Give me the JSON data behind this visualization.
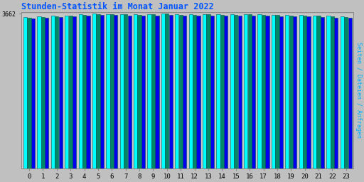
{
  "title": "Stunden-Statistik im Monat Januar 2022",
  "title_color": "#0055FF",
  "ylabel_right": "Seiten / Dateien / Anfragen",
  "ylabel_right_color": "#00AAFF",
  "ytick_label": "3662",
  "ytick_value": 3662,
  "background_color": "#C0C0C0",
  "plot_bg_color": "#C8C8C8",
  "bar_color_cyan": "#00FFFF",
  "bar_color_teal": "#008866",
  "bar_color_blue": "#0000EE",
  "bar_edgecolor": "#005555",
  "hours": [
    0,
    1,
    2,
    3,
    4,
    5,
    6,
    7,
    8,
    9,
    10,
    11,
    12,
    13,
    14,
    15,
    16,
    17,
    18,
    19,
    20,
    21,
    22,
    23
  ],
  "values_cyan": [
    3575,
    3592,
    3612,
    3622,
    3645,
    3658,
    3654,
    3650,
    3647,
    3650,
    3662,
    3648,
    3648,
    3650,
    3648,
    3648,
    3650,
    3642,
    3640,
    3634,
    3630,
    3620,
    3607,
    3594
  ],
  "values_teal": [
    3568,
    3582,
    3600,
    3610,
    3635,
    3652,
    3648,
    3644,
    3638,
    3644,
    3658,
    3638,
    3640,
    3644,
    3640,
    3638,
    3644,
    3633,
    3628,
    3620,
    3617,
    3607,
    3597,
    3582
  ],
  "values_blue": [
    3548,
    3562,
    3580,
    3590,
    3610,
    3628,
    3625,
    3620,
    3615,
    3618,
    3632,
    3618,
    3620,
    3622,
    3620,
    3618,
    3620,
    3610,
    3605,
    3597,
    3593,
    3582,
    3572,
    3558
  ],
  "ymin": 0,
  "ymax": 3700,
  "figsize": [
    5.12,
    2.56
  ],
  "dpi": 100
}
